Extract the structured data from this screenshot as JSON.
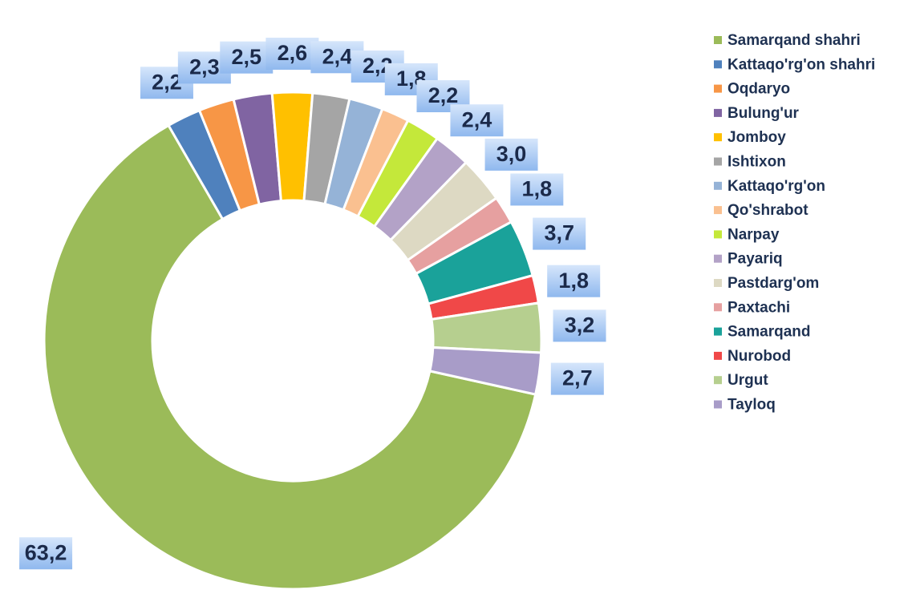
{
  "chart_data": {
    "type": "donut",
    "categories": [
      "Samarqand shahri",
      "Kattaqo'rg'on shahri",
      "Oqdaryo",
      "Bulung'ur",
      "Jomboy",
      "Ishtixon",
      "Kattaqo'rg'on",
      "Qo'shrabot",
      "Narpay",
      "Payariq",
      "Pastdarg'om",
      "Paxtachi",
      "Samarqand",
      "Nurobod",
      "Urgut",
      "Tayloq"
    ],
    "values": [
      63.2,
      2.2,
      2.3,
      2.5,
      2.6,
      2.4,
      2.2,
      1.8,
      2.2,
      2.4,
      3.0,
      1.8,
      3.7,
      1.8,
      3.2,
      2.7
    ],
    "value_labels": [
      "63,2",
      "2,2",
      "2,3",
      "2,5",
      "2,6",
      "2,4",
      "2,2",
      "1,8",
      "2,2",
      "2,4",
      "3,0",
      "1,8",
      "3,7",
      "1,8",
      "3,2",
      "2,7"
    ],
    "colors": [
      "#9bbb59",
      "#4f81bd",
      "#f79646",
      "#8064a2",
      "#ffc000",
      "#a5a5a5",
      "#95b3d7",
      "#fac090",
      "#c4e83a",
      "#b3a2c7",
      "#ddd9c3",
      "#e6a0a0",
      "#1aa29a",
      "#f04848",
      "#b6cf8f",
      "#a89cc8"
    ],
    "legend": "right"
  }
}
